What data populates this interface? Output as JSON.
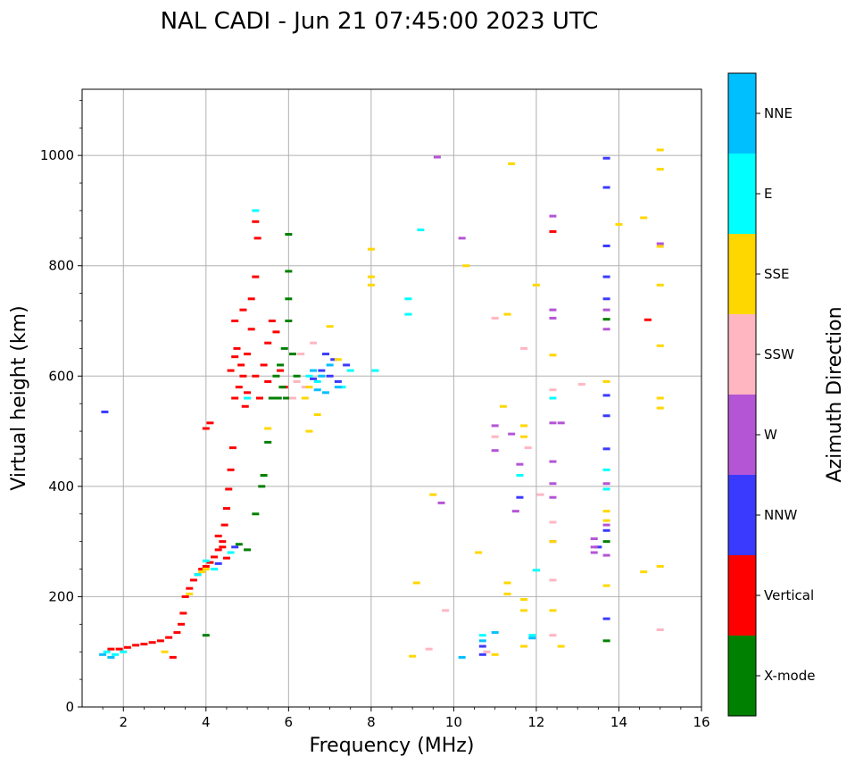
{
  "chart_data": {
    "type": "scatter",
    "title": "NAL CADI - Jun 21 07:45:00 2023 UTC",
    "xlabel": "Frequency (MHz)",
    "ylabel": "Virtual height (km)",
    "xlim": [
      1,
      16
    ],
    "ylim": [
      0,
      1120
    ],
    "xticks": [
      2,
      4,
      6,
      8,
      10,
      12,
      14,
      16
    ],
    "xtick_labels": [
      "2",
      "4",
      "6",
      "8",
      "10",
      "12",
      "14",
      "16"
    ],
    "yticks": [
      0,
      200,
      400,
      600,
      800,
      1000
    ],
    "ytick_labels": [
      "0",
      "200",
      "400",
      "600",
      "800",
      "1000"
    ],
    "grid": true,
    "colorbar": {
      "label": "Azimuth Direction",
      "categories": [
        {
          "name": "X-mode",
          "color": "#008000"
        },
        {
          "name": "Vertical",
          "color": "#ff0000"
        },
        {
          "name": "NNW",
          "color": "#3a3aff"
        },
        {
          "name": "W",
          "color": "#b455d6"
        },
        {
          "name": "SSW",
          "color": "#ffb6c1"
        },
        {
          "name": "SSE",
          "color": "#ffd700"
        },
        {
          "name": "E",
          "color": "#00ffff"
        },
        {
          "name": "NNE",
          "color": "#00bfff"
        }
      ]
    },
    "series": [
      {
        "name": "Vertical",
        "points": [
          [
            1.7,
            105
          ],
          [
            1.9,
            105
          ],
          [
            2.1,
            108
          ],
          [
            2.3,
            112
          ],
          [
            2.5,
            114
          ],
          [
            2.7,
            117
          ],
          [
            2.9,
            120
          ],
          [
            3.1,
            126
          ],
          [
            3.3,
            135
          ],
          [
            3.4,
            150
          ],
          [
            3.45,
            170
          ],
          [
            3.5,
            200
          ],
          [
            3.6,
            215
          ],
          [
            3.7,
            230
          ],
          [
            3.8,
            240
          ],
          [
            3.9,
            250
          ],
          [
            4.0,
            255
          ],
          [
            4.1,
            262
          ],
          [
            4.2,
            272
          ],
          [
            4.3,
            285
          ],
          [
            4.4,
            300
          ],
          [
            4.45,
            330
          ],
          [
            4.5,
            360
          ],
          [
            4.55,
            395
          ],
          [
            4.6,
            430
          ],
          [
            4.65,
            470
          ],
          [
            4.0,
            505
          ],
          [
            4.1,
            515
          ],
          [
            4.7,
            560
          ],
          [
            4.8,
            580
          ],
          [
            4.9,
            600
          ],
          [
            5.0,
            570
          ],
          [
            4.95,
            545
          ],
          [
            4.85,
            620
          ],
          [
            4.75,
            650
          ],
          [
            4.7,
            700
          ],
          [
            4.9,
            720
          ],
          [
            5.1,
            740
          ],
          [
            5.2,
            780
          ],
          [
            5.25,
            850
          ],
          [
            5.2,
            880
          ],
          [
            5.3,
            560
          ],
          [
            5.5,
            590
          ],
          [
            5.4,
            620
          ],
          [
            5.5,
            660
          ],
          [
            5.6,
            700
          ],
          [
            5.7,
            680
          ],
          [
            5.8,
            610
          ],
          [
            5.9,
            580
          ],
          [
            4.6,
            610
          ],
          [
            4.7,
            635
          ],
          [
            5.0,
            640
          ],
          [
            5.2,
            600
          ],
          [
            14.7,
            702
          ],
          [
            12.4,
            862
          ],
          [
            3.2,
            90
          ],
          [
            4.4,
            290
          ],
          [
            4.3,
            310
          ],
          [
            4.5,
            270
          ],
          [
            5.1,
            685
          ]
        ]
      },
      {
        "name": "X-mode",
        "points": [
          [
            4.8,
            295
          ],
          [
            5.0,
            285
          ],
          [
            5.2,
            350
          ],
          [
            5.35,
            400
          ],
          [
            5.4,
            420
          ],
          [
            5.5,
            480
          ],
          [
            5.6,
            560
          ],
          [
            5.7,
            600
          ],
          [
            5.8,
            620
          ],
          [
            5.9,
            650
          ],
          [
            6.0,
            700
          ],
          [
            6.0,
            740
          ],
          [
            6.0,
            790
          ],
          [
            6.0,
            857
          ],
          [
            5.85,
            580
          ],
          [
            5.75,
            560
          ],
          [
            6.1,
            640
          ],
          [
            6.2,
            600
          ],
          [
            5.95,
            560
          ],
          [
            4.0,
            130
          ],
          [
            13.7,
            120
          ],
          [
            13.7,
            300
          ],
          [
            13.7,
            703
          ]
        ]
      },
      {
        "name": "NNW",
        "points": [
          [
            1.55,
            535
          ],
          [
            4.3,
            260
          ],
          [
            4.7,
            290
          ],
          [
            6.6,
            595
          ],
          [
            6.8,
            610
          ],
          [
            7.0,
            600
          ],
          [
            7.2,
            590
          ],
          [
            7.4,
            620
          ],
          [
            6.9,
            640
          ],
          [
            7.1,
            630
          ],
          [
            13.7,
            995
          ],
          [
            13.7,
            942
          ],
          [
            13.7,
            836
          ],
          [
            13.7,
            780
          ],
          [
            13.7,
            740
          ],
          [
            13.7,
            565
          ],
          [
            13.7,
            528
          ],
          [
            13.7,
            468
          ],
          [
            13.7,
            320
          ],
          [
            13.7,
            160
          ],
          [
            13.5,
            290
          ],
          [
            11.6,
            380
          ],
          [
            10.7,
            110
          ],
          [
            10.7,
            95
          ]
        ]
      },
      {
        "name": "W",
        "points": [
          [
            9.6,
            997
          ],
          [
            10.2,
            850
          ],
          [
            12.4,
            890
          ],
          [
            12.4,
            720
          ],
          [
            12.4,
            705
          ],
          [
            11.0,
            510
          ],
          [
            11.0,
            465
          ],
          [
            11.4,
            495
          ],
          [
            11.6,
            440
          ],
          [
            12.4,
            515
          ],
          [
            12.4,
            445
          ],
          [
            12.4,
            405
          ],
          [
            12.4,
            380
          ],
          [
            12.4,
            300
          ],
          [
            13.4,
            305
          ],
          [
            13.4,
            290
          ],
          [
            13.4,
            280
          ],
          [
            13.7,
            405
          ],
          [
            13.7,
            330
          ],
          [
            13.7,
            275
          ],
          [
            13.7,
            720
          ],
          [
            13.7,
            685
          ],
          [
            15.0,
            840
          ],
          [
            12.6,
            515
          ],
          [
            11.5,
            355
          ],
          [
            9.7,
            370
          ]
        ]
      },
      {
        "name": "SSW",
        "points": [
          [
            6.1,
            560
          ],
          [
            6.2,
            590
          ],
          [
            6.4,
            580
          ],
          [
            6.6,
            660
          ],
          [
            6.3,
            640
          ],
          [
            11.0,
            705
          ],
          [
            11.0,
            490
          ],
          [
            12.4,
            575
          ],
          [
            12.4,
            335
          ],
          [
            12.4,
            230
          ],
          [
            12.4,
            130
          ],
          [
            13.1,
            585
          ],
          [
            11.7,
            650
          ],
          [
            10.8,
            100
          ],
          [
            11.8,
            470
          ],
          [
            9.4,
            105
          ],
          [
            9.8,
            175
          ],
          [
            15.0,
            140
          ],
          [
            12.1,
            385
          ]
        ]
      },
      {
        "name": "SSE",
        "points": [
          [
            3.0,
            100
          ],
          [
            3.6,
            205
          ],
          [
            3.9,
            245
          ],
          [
            4.0,
            250
          ],
          [
            5.5,
            505
          ],
          [
            6.5,
            500
          ],
          [
            6.7,
            530
          ],
          [
            6.4,
            560
          ],
          [
            6.5,
            580
          ],
          [
            7.0,
            690
          ],
          [
            7.2,
            630
          ],
          [
            8.0,
            830
          ],
          [
            8.0,
            780
          ],
          [
            8.0,
            765
          ],
          [
            9.1,
            225
          ],
          [
            9.0,
            92
          ],
          [
            9.5,
            385
          ],
          [
            10.3,
            800
          ],
          [
            10.6,
            280
          ],
          [
            11.0,
            95
          ],
          [
            11.3,
            712
          ],
          [
            11.3,
            205
          ],
          [
            11.3,
            225
          ],
          [
            11.2,
            545
          ],
          [
            11.7,
            510
          ],
          [
            11.7,
            490
          ],
          [
            11.7,
            110
          ],
          [
            11.7,
            175
          ],
          [
            11.7,
            195
          ],
          [
            12.0,
            765
          ],
          [
            12.4,
            638
          ],
          [
            12.4,
            300
          ],
          [
            12.4,
            175
          ],
          [
            12.6,
            110
          ],
          [
            13.7,
            590
          ],
          [
            13.7,
            355
          ],
          [
            13.7,
            338
          ],
          [
            13.7,
            220
          ],
          [
            14.0,
            875
          ],
          [
            14.6,
            887
          ],
          [
            14.6,
            245
          ],
          [
            15.0,
            1010
          ],
          [
            15.0,
            975
          ],
          [
            15.0,
            835
          ],
          [
            15.0,
            765
          ],
          [
            15.0,
            655
          ],
          [
            15.0,
            560
          ],
          [
            15.0,
            542
          ],
          [
            15.0,
            255
          ],
          [
            11.4,
            985
          ]
        ]
      },
      {
        "name": "E",
        "points": [
          [
            1.6,
            100
          ],
          [
            1.8,
            95
          ],
          [
            2.0,
            100
          ],
          [
            3.8,
            240
          ],
          [
            4.0,
            265
          ],
          [
            4.2,
            250
          ],
          [
            4.6,
            280
          ],
          [
            5.2,
            900
          ],
          [
            5.0,
            560
          ],
          [
            6.5,
            600
          ],
          [
            6.7,
            590
          ],
          [
            7.3,
            580
          ],
          [
            7.5,
            610
          ],
          [
            8.1,
            610
          ],
          [
            8.9,
            740
          ],
          [
            8.9,
            712
          ],
          [
            9.2,
            865
          ],
          [
            10.7,
            130
          ],
          [
            11.6,
            420
          ],
          [
            12.0,
            248
          ],
          [
            11.9,
            130
          ],
          [
            12.4,
            560
          ],
          [
            13.7,
            430
          ],
          [
            13.7,
            395
          ]
        ]
      },
      {
        "name": "NNE",
        "points": [
          [
            1.5,
            95
          ],
          [
            1.7,
            90
          ],
          [
            6.6,
            610
          ],
          [
            6.8,
            600
          ],
          [
            7.0,
            620
          ],
          [
            7.2,
            580
          ],
          [
            6.9,
            570
          ],
          [
            6.7,
            575
          ],
          [
            10.7,
            120
          ],
          [
            10.2,
            90
          ],
          [
            11.0,
            135
          ],
          [
            11.9,
            125
          ]
        ]
      }
    ]
  }
}
